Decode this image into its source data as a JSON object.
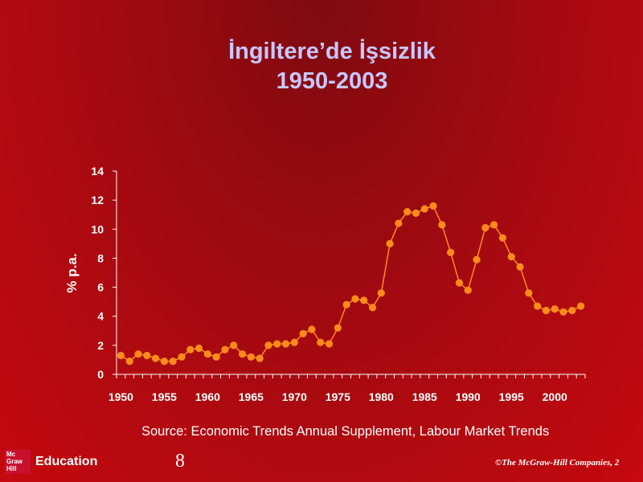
{
  "slide": {
    "title_line1": "İngiltere’de İşsizlik",
    "title_line2": "1950-2003",
    "source": "Source: Economic Trends Annual Supplement, Labour Market Trends",
    "page_number": "8",
    "copyright": "©The McGraw-Hill Companies, 2",
    "logo": {
      "box_lines": [
        "Mc",
        "Graw",
        "Hill"
      ],
      "text": "Education"
    }
  },
  "colors": {
    "series": "#ff8c1a",
    "axis": "#ffffff",
    "title": "#c7c7ff"
  },
  "chart_data": {
    "type": "line",
    "title": "İngiltere’de İşsizlik 1950-2003",
    "xlabel": "",
    "ylabel": "% p.a.",
    "xlim": [
      1950,
      2003
    ],
    "ylim": [
      0,
      14
    ],
    "xticks": [
      "1950",
      "1955",
      "1960",
      "1965",
      "1970",
      "1975",
      "1980",
      "1985",
      "1990",
      "1995",
      "2000"
    ],
    "yticks": [
      "0",
      "2",
      "4",
      "6",
      "8",
      "10",
      "12",
      "14"
    ],
    "grid": false,
    "legend": "none",
    "x": [
      1950,
      1951,
      1952,
      1953,
      1954,
      1955,
      1956,
      1957,
      1958,
      1959,
      1960,
      1961,
      1962,
      1963,
      1964,
      1965,
      1966,
      1967,
      1968,
      1969,
      1970,
      1971,
      1972,
      1973,
      1974,
      1975,
      1976,
      1977,
      1978,
      1979,
      1980,
      1981,
      1982,
      1983,
      1984,
      1985,
      1986,
      1987,
      1988,
      1989,
      1990,
      1991,
      1992,
      1993,
      1994,
      1995,
      1996,
      1997,
      1998,
      1999,
      2000,
      2001,
      2002,
      2003
    ],
    "series": [
      {
        "values": [
          1.3,
          0.9,
          1.4,
          1.3,
          1.1,
          0.9,
          0.9,
          1.2,
          1.7,
          1.8,
          1.4,
          1.2,
          1.7,
          2.0,
          1.4,
          1.2,
          1.1,
          2.0,
          2.1,
          2.1,
          2.2,
          2.8,
          3.1,
          2.2,
          2.1,
          3.2,
          4.8,
          5.2,
          5.1,
          4.6,
          5.6,
          9.0,
          10.4,
          11.2,
          11.1,
          11.4,
          11.6,
          10.3,
          8.4,
          6.3,
          5.8,
          7.9,
          10.1,
          10.3,
          9.4,
          8.1,
          7.4,
          5.6,
          4.7,
          4.4,
          4.5,
          4.3,
          4.4,
          4.7
        ]
      }
    ]
  }
}
